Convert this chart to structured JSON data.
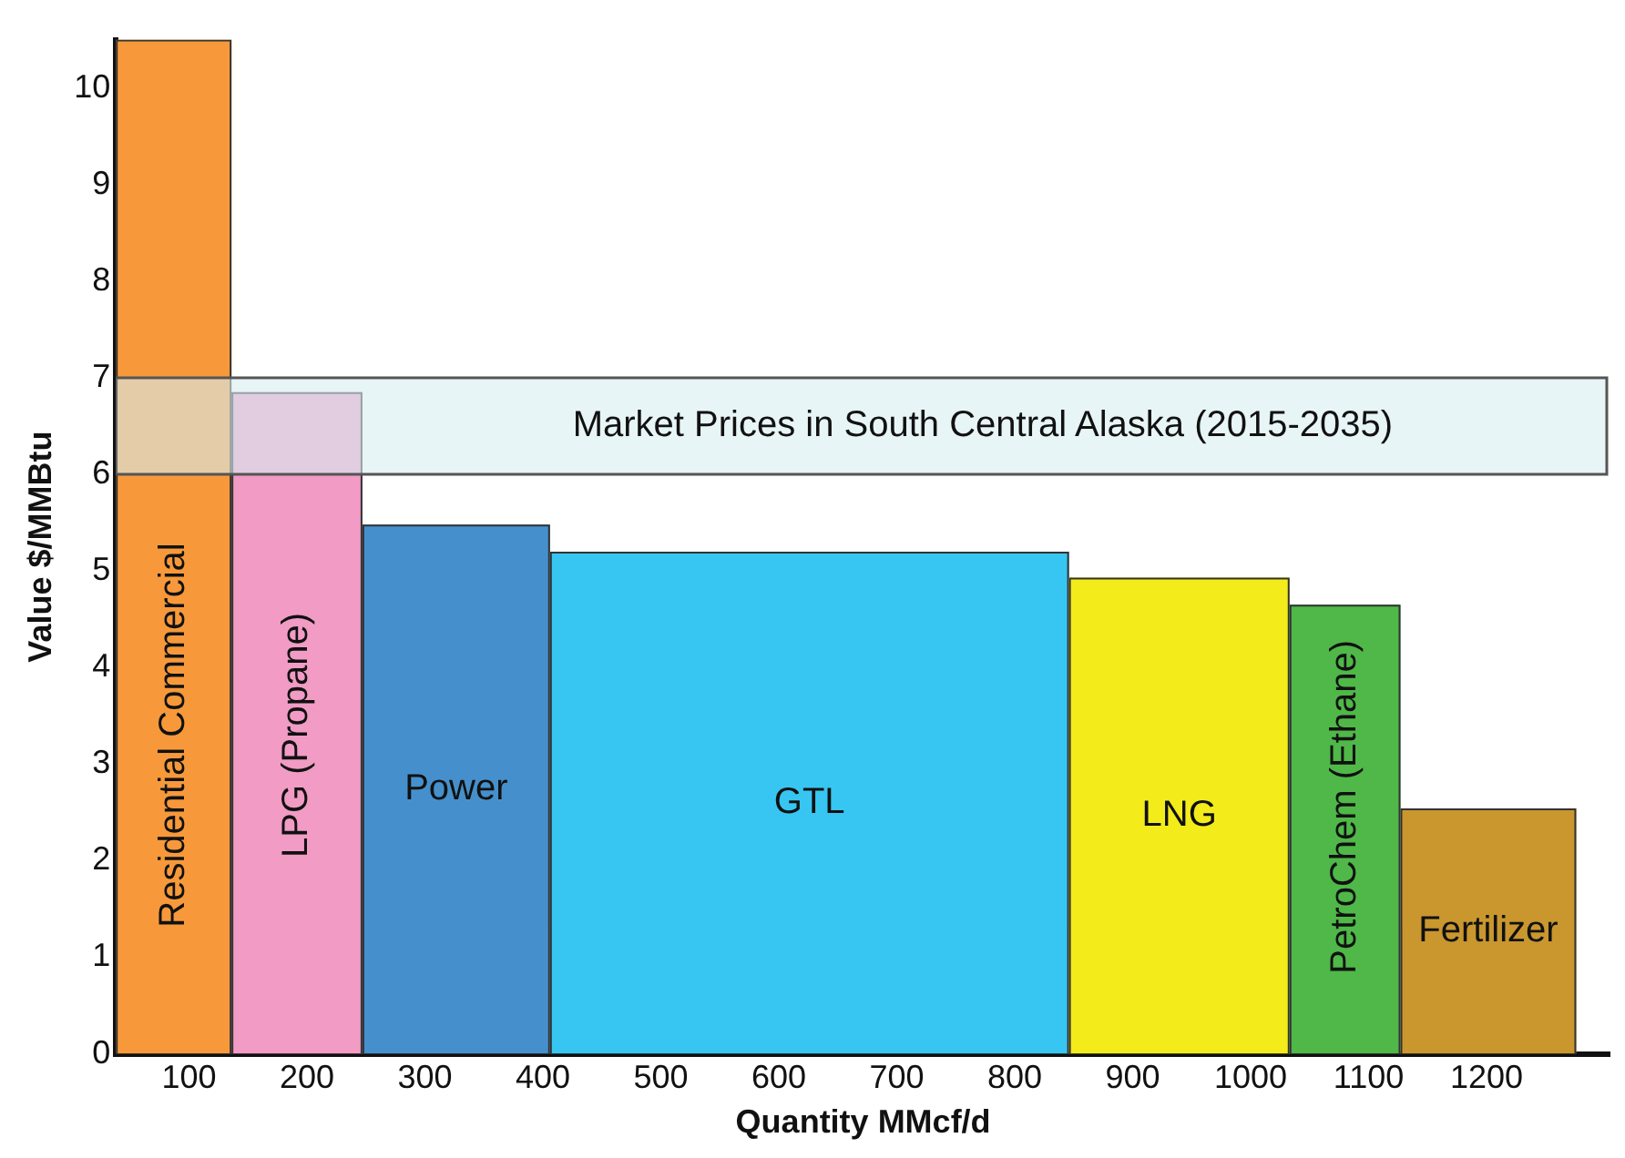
{
  "chart_data": {
    "type": "histogram",
    "xlabel": "Quantity MMcf/d",
    "ylabel": "Value $/MMBtu",
    "categories": [
      "Residential Commercial",
      "LPG (Propane)",
      "Power",
      "GTL",
      "LNG",
      "PetroChem (Ethane)",
      "Fertilizer"
    ],
    "bins": [
      38,
      136,
      247,
      406,
      846,
      1033,
      1127,
      1276
    ],
    "values": [
      10.5,
      6.85,
      5.48,
      5.2,
      4.93,
      4.65,
      2.54
    ],
    "colors": [
      "#f7993a",
      "#f19bc5",
      "#4590cc",
      "#37c6f2",
      "#f4ec1a",
      "#4fb848",
      "#c9972e"
    ],
    "xlim": [
      38,
      1305
    ],
    "xticks": [
      100,
      200,
      300,
      400,
      500,
      600,
      700,
      800,
      900,
      1000,
      1100,
      1200
    ],
    "ylim": [
      0,
      10.5
    ],
    "yticks": [
      0,
      1,
      2,
      3,
      4,
      5,
      6,
      7,
      8,
      9,
      10
    ],
    "bands": [
      {
        "axis": "y",
        "from": 6,
        "to": 7,
        "label": "Market Prices in South Central Alaska (2015-2035)",
        "color": "#d9eef2"
      }
    ],
    "grid": false,
    "legend": false
  }
}
